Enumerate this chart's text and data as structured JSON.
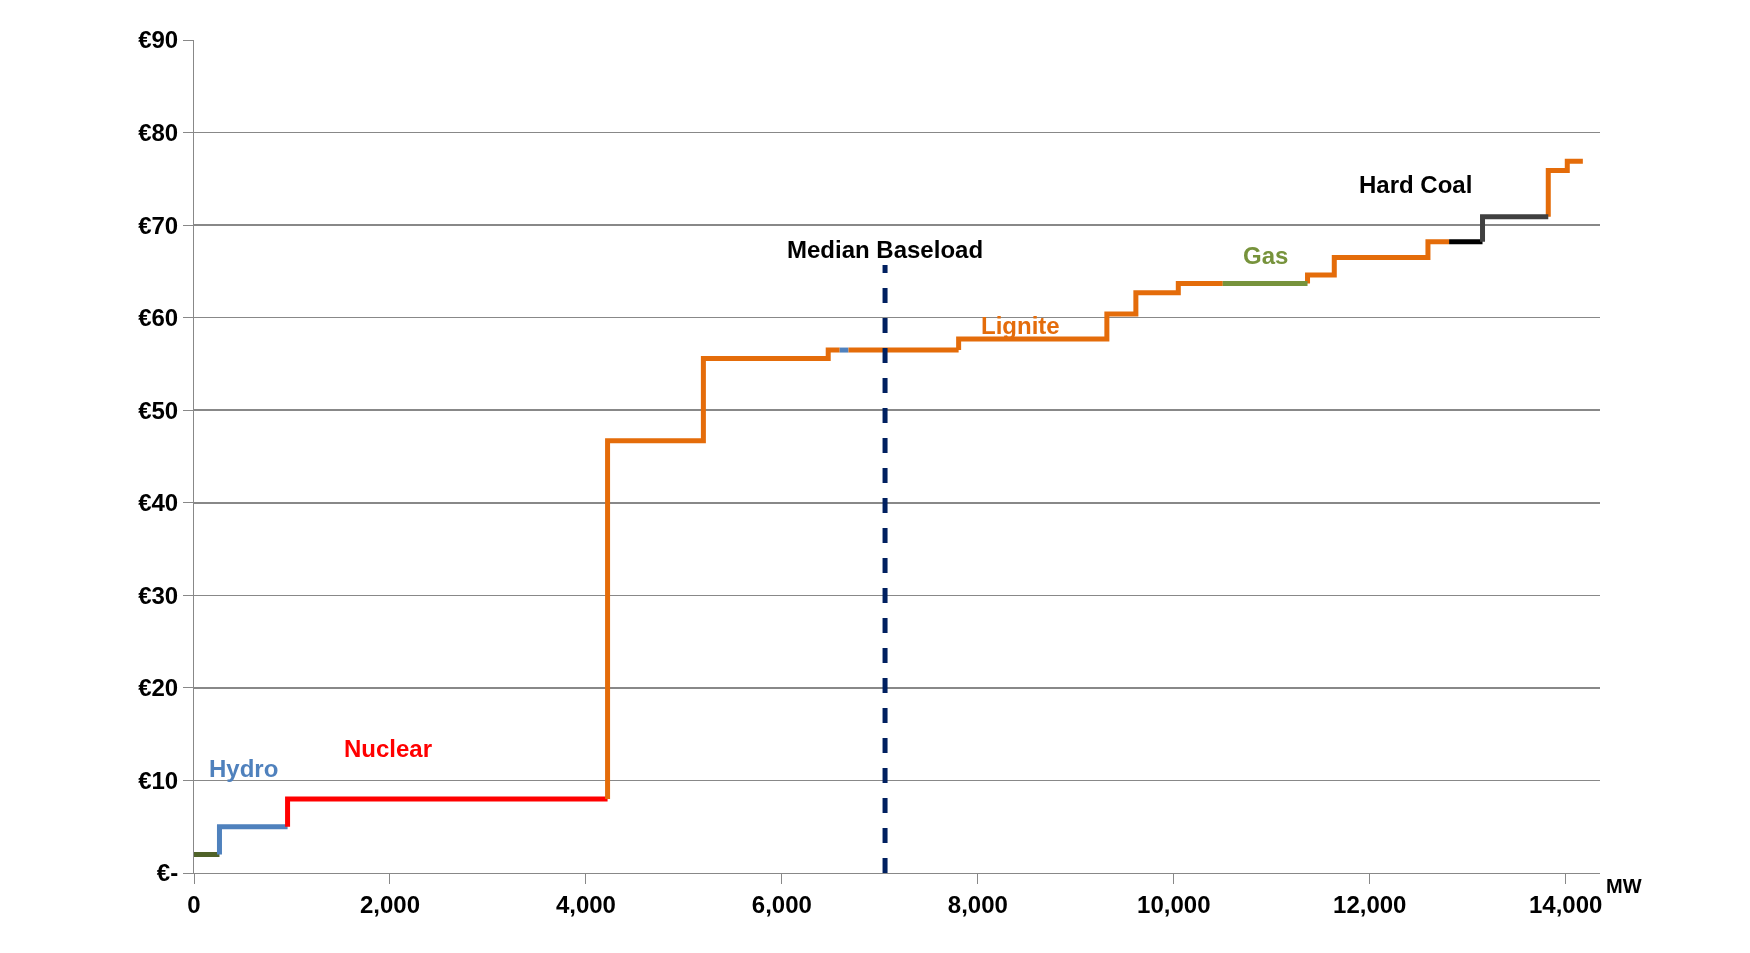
{
  "chart_data": {
    "type": "step",
    "xlabel": "MW",
    "xlim": [
      0,
      14350
    ],
    "xticks": [
      0,
      {
        "value": 2000,
        "label": "2,000"
      },
      {
        "value": 4000,
        "label": "4,000"
      },
      {
        "value": 6000,
        "label": "6,000"
      },
      {
        "value": 8000,
        "label": "8,000"
      },
      {
        "value": 10000,
        "label": "10,000"
      },
      {
        "value": 12000,
        "label": "12,000"
      },
      {
        "value": 14000,
        "label": "14,000"
      }
    ],
    "ylim": [
      0,
      90
    ],
    "yticks": [
      {
        "value": 0,
        "label": "€-"
      },
      {
        "value": 10,
        "label": "€10"
      },
      {
        "value": 20,
        "label": "€20"
      },
      {
        "value": 30,
        "label": "€30"
      },
      {
        "value": 40,
        "label": "€40"
      },
      {
        "value": 50,
        "label": "€50"
      },
      {
        "value": 60,
        "label": "€60"
      },
      {
        "value": 70,
        "label": "€70"
      },
      {
        "value": 80,
        "label": "€80"
      },
      {
        "value": 90,
        "label": "€90"
      }
    ],
    "grid": "y",
    "legend": false,
    "line_style": "solid",
    "marker": "none",
    "series": [
      {
        "color": "#4f6228",
        "x": [
          0,
          260
        ],
        "values": [
          2,
          2
        ]
      },
      {
        "name": "Hydro",
        "color": "#4f81bd",
        "x": [
          260,
          260,
          955
        ],
        "values": [
          2,
          5,
          5
        ]
      },
      {
        "name": "Nuclear",
        "color": "#ff0000",
        "x": [
          955,
          955,
          4221
        ],
        "values": [
          5,
          8,
          8
        ]
      },
      {
        "color": "#e46c0a",
        "x": [
          4221,
          4221,
          5199,
          6473,
          6590
        ],
        "values": [
          8,
          46.7,
          55.6,
          56.5,
          56.5
        ]
      },
      {
        "color": "#4f81bd",
        "x": [
          6590,
          6680
        ],
        "values": [
          56.5,
          56.5
        ]
      },
      {
        "color": "#e46c0a",
        "x": [
          6680,
          7804
        ],
        "values": [
          56.5,
          56.5
        ]
      },
      {
        "name": "Lignite",
        "color": "#e46c0a",
        "x": [
          7804,
          7804,
          9317,
          9613,
          10046,
          10500
        ],
        "values": [
          56.5,
          57.7,
          60.4,
          62.7,
          63.7,
          63.7
        ]
      },
      {
        "color": "#e46c0a",
        "x": [
          11365,
          11365,
          11638,
          12594,
          12810
        ],
        "values": [
          63.7,
          64.6,
          66.5,
          68.2,
          68.2
        ]
      },
      {
        "color": "#e46c0a",
        "x": [
          13822,
          13822,
          14016,
          14175
        ],
        "values": [
          70.9,
          75.9,
          76.9,
          76.9
        ]
      },
      {
        "name": "Gas",
        "color": "#77933c",
        "x": [
          10500,
          11365
        ],
        "values": [
          63.7,
          63.7
        ]
      },
      {
        "color": "#000000",
        "x": [
          12810,
          13151
        ],
        "values": [
          68.2,
          68.2
        ]
      },
      {
        "name": "Hard Coal",
        "color": "#404040",
        "x": [
          13151,
          13151,
          13822
        ],
        "values": [
          68.2,
          70.9,
          70.9
        ]
      }
    ],
    "ref_lines": [
      {
        "axis": "x",
        "value": 7053,
        "label": "Median Baseload",
        "color": "#002060",
        "line_style": "dashed"
      }
    ]
  }
}
